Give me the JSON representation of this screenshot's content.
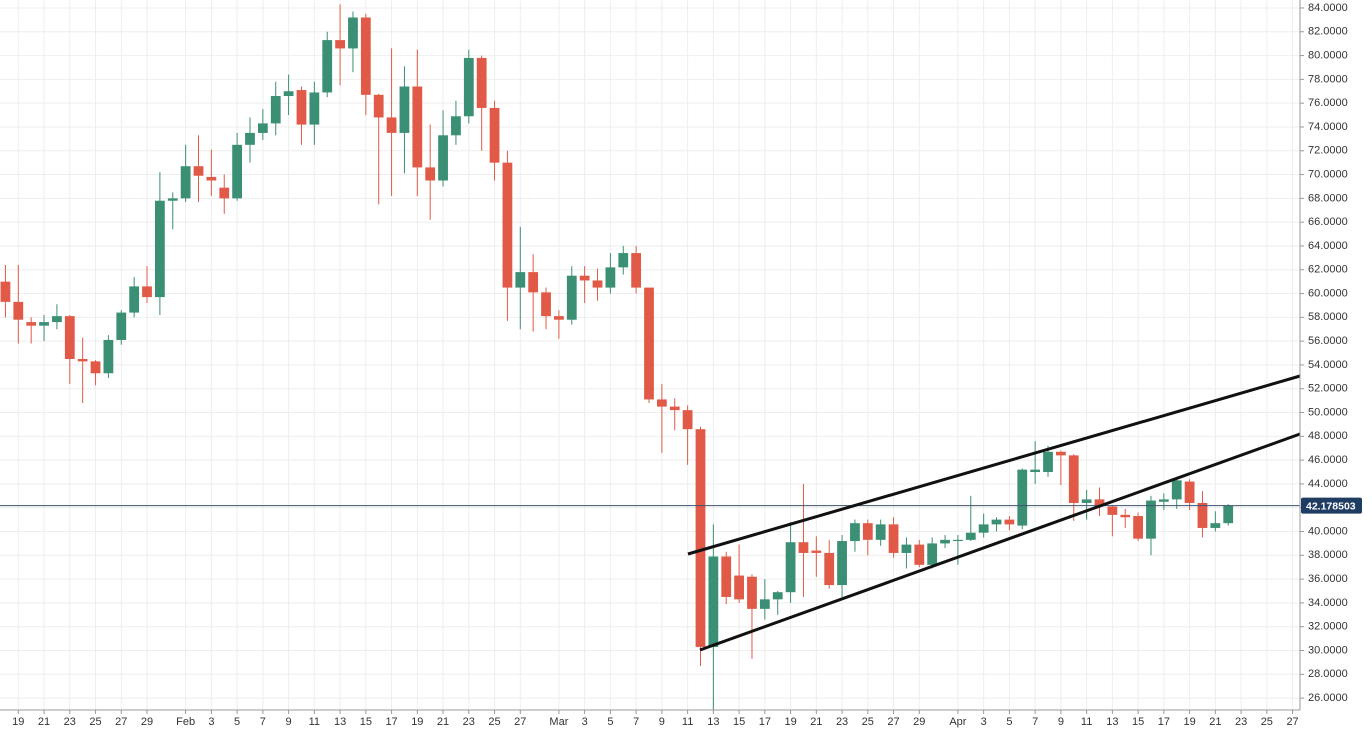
{
  "chart_data": {
    "type": "candlestick",
    "categories": [
      null,
      "19",
      null,
      "21",
      null,
      "23",
      null,
      "25",
      null,
      "27",
      null,
      "29",
      null,
      null,
      "Feb",
      null,
      "3",
      null,
      "5",
      null,
      "7",
      null,
      "9",
      null,
      "11",
      null,
      "13",
      null,
      "15",
      null,
      "17",
      null,
      "19",
      null,
      "21",
      null,
      "23",
      null,
      "25",
      null,
      "27",
      null,
      null,
      "Mar",
      null,
      "3",
      null,
      "5",
      null,
      "7",
      null,
      "9",
      null,
      "11",
      null,
      "13",
      null,
      "15",
      null,
      "17",
      null,
      "19",
      null,
      "21",
      null,
      "23",
      null,
      "25",
      null,
      "27",
      null,
      "29",
      null,
      null,
      "Apr",
      null,
      "3",
      null,
      "5",
      null,
      "7",
      null,
      "9",
      null,
      "11",
      null,
      "13",
      null,
      "15",
      null,
      "17",
      null,
      "19",
      null,
      "21",
      null,
      "23",
      null,
      "25",
      null,
      "27"
    ],
    "open": [
      61,
      59.3,
      57.6,
      57.3,
      57.6,
      58.1,
      54.5,
      54.3,
      53.3,
      56.1,
      58.4,
      60.6,
      59.7,
      67.8,
      68,
      70.7,
      69.8,
      68.9,
      68,
      72.5,
      73.5,
      74.3,
      76.6,
      77.1,
      74.2,
      76.9,
      81.3,
      80.6,
      83.2,
      76.7,
      74.8,
      73.5,
      77.4,
      70.6,
      69.5,
      73.3,
      74.9,
      79.8,
      75.6,
      71,
      60.5,
      61.8,
      60.1,
      58.1,
      57.8,
      61.5,
      61.1,
      60.5,
      62.2,
      63.4,
      60.5,
      51.1,
      50.5,
      50.2,
      48.6,
      30.3,
      37.9,
      36.3,
      36.2,
      33.5,
      34.3,
      34.9,
      39.1,
      38.4,
      38.2,
      35.5,
      39.2,
      40.7,
      39.3,
      40.6,
      38.2,
      38.9,
      37.2,
      39,
      39.2,
      39.3,
      39.9,
      40.6,
      41,
      40.5,
      45,
      45,
      46.7,
      46.4,
      42.4,
      42.7,
      42.1,
      41.4,
      41.3,
      39.4,
      42.5,
      42.7,
      44.2,
      42.4,
      40.3,
      40.7,
      null,
      null,
      null,
      null,
      null
    ],
    "high": [
      62.4,
      62.4,
      58,
      58.2,
      59.1,
      58.2,
      56.3,
      54.4,
      56.5,
      58.6,
      61.4,
      62.3,
      70.2,
      68.5,
      72.5,
      73.3,
      72.1,
      70,
      73.5,
      74.8,
      75.5,
      77.8,
      78.4,
      77.4,
      77.8,
      82,
      84.3,
      83.7,
      83.5,
      76.8,
      80.6,
      79.1,
      80.5,
      74.2,
      75.4,
      76.2,
      80.5,
      80,
      76.2,
      72,
      65.6,
      63.3,
      60.5,
      58.6,
      62.3,
      62.3,
      62.1,
      63.4,
      64,
      64,
      60.5,
      52.4,
      51.2,
      50.6,
      48.8,
      40.6,
      38.3,
      38.9,
      36.4,
      36,
      35,
      40.8,
      44,
      39.6,
      39.3,
      39.7,
      41,
      41,
      41,
      41.2,
      39.5,
      39.3,
      39.5,
      39.7,
      39.7,
      43,
      41.5,
      41.2,
      41.3,
      45.3,
      47.6,
      47.2,
      46.8,
      46.5,
      43.5,
      43.7,
      42.2,
      41.9,
      41.6,
      43,
      43.2,
      44.6,
      44.4,
      43.4,
      41.7,
      42.3,
      null,
      null,
      null,
      null,
      null
    ],
    "low": [
      58,
      55.8,
      55.8,
      56,
      57,
      52.4,
      50.8,
      52.3,
      52.9,
      55.7,
      58,
      59.2,
      58.2,
      65.4,
      67.7,
      67.7,
      68.2,
      66.7,
      67.8,
      71,
      72.9,
      73.3,
      75,
      72.5,
      72.5,
      76.5,
      77.5,
      78.6,
      75,
      67.5,
      68.2,
      70.1,
      68.2,
      66.2,
      69,
      72.5,
      74.3,
      72,
      69.5,
      57.7,
      57,
      56.8,
      57,
      56.2,
      57.4,
      59.2,
      59.4,
      60,
      61.6,
      60,
      50.8,
      46.6,
      48.5,
      45.6,
      28.7,
      25,
      33.9,
      34,
      29.3,
      32.6,
      33,
      34,
      34.5,
      36.2,
      35.2,
      34.5,
      38.3,
      38,
      38.8,
      37.8,
      36.9,
      37,
      36.9,
      38.6,
      37.2,
      39.2,
      39.5,
      40,
      40.1,
      40.2,
      44,
      44.6,
      43.9,
      40.9,
      41,
      41.3,
      39.6,
      40.3,
      39.2,
      38,
      41.8,
      41.9,
      41.8,
      39.5,
      40,
      40.5,
      null,
      null,
      null,
      null,
      null
    ],
    "close": [
      59.3,
      57.8,
      57.3,
      57.6,
      58.1,
      54.5,
      54.3,
      53.3,
      56.1,
      58.4,
      60.6,
      59.7,
      67.8,
      68,
      70.7,
      69.9,
      69.5,
      68,
      72.5,
      73.5,
      74.3,
      76.6,
      77,
      74.2,
      76.9,
      81.3,
      80.6,
      83.2,
      76.7,
      74.8,
      73.5,
      77.4,
      70.6,
      69.5,
      73.3,
      74.9,
      79.8,
      75.6,
      71,
      60.5,
      61.8,
      60.1,
      58.1,
      57.8,
      61.5,
      61.1,
      60.5,
      62.2,
      63.4,
      60.5,
      51.1,
      50.5,
      50.2,
      48.6,
      30.3,
      37.9,
      34.5,
      34.3,
      33.5,
      34.3,
      34.9,
      39.1,
      38.2,
      38.2,
      35.5,
      39.2,
      40.7,
      39.3,
      40.6,
      38.2,
      38.9,
      37.2,
      39,
      39.3,
      39.3,
      39.9,
      40.6,
      41,
      40.6,
      45.2,
      45.2,
      46.7,
      46.4,
      42.4,
      42.7,
      42.1,
      41.4,
      41.2,
      39.4,
      42.6,
      42.7,
      44.3,
      42.4,
      40.3,
      40.7,
      42.18,
      null,
      null,
      null,
      null,
      null
    ],
    "up_color": "#3a8f74",
    "down_color": "#e05a47",
    "last_price": 42.178503,
    "ylim": [
      25,
      84.67
    ],
    "yticks": [
      {
        "value": 26,
        "label": "26.0000"
      },
      {
        "value": 28,
        "label": "28.0000"
      },
      {
        "value": 30,
        "label": "30.0000"
      },
      {
        "value": 32,
        "label": "32.0000"
      },
      {
        "value": 34,
        "label": "34.0000"
      },
      {
        "value": 36,
        "label": "36.0000"
      },
      {
        "value": 38,
        "label": "38.0000"
      },
      {
        "value": 40,
        "label": "40.0000"
      },
      {
        "value": 42,
        "label": "42.0000"
      },
      {
        "value": 44,
        "label": "44.0000"
      },
      {
        "value": 46,
        "label": "46.0000"
      },
      {
        "value": 48,
        "label": "48.0000"
      },
      {
        "value": 50,
        "label": "50.0000"
      },
      {
        "value": 52,
        "label": "52.0000"
      },
      {
        "value": 54,
        "label": "54.0000"
      },
      {
        "value": 56,
        "label": "56.0000"
      },
      {
        "value": 58,
        "label": "58.0000"
      },
      {
        "value": 60,
        "label": "60.0000"
      },
      {
        "value": 62,
        "label": "62.0000"
      },
      {
        "value": 64,
        "label": "64.0000"
      },
      {
        "value": 66,
        "label": "66.0000"
      },
      {
        "value": 68,
        "label": "68.0000"
      },
      {
        "value": 70,
        "label": "70.0000"
      },
      {
        "value": 72,
        "label": "72.0000"
      },
      {
        "value": 74,
        "label": "74.0000"
      },
      {
        "value": 76,
        "label": "76.0000"
      },
      {
        "value": 78,
        "label": "78.0000"
      },
      {
        "value": 80,
        "label": "80.0000"
      },
      {
        "value": 82,
        "label": "82.0000"
      },
      {
        "value": 84,
        "label": "84.0000"
      }
    ],
    "grid": true
  }
}
